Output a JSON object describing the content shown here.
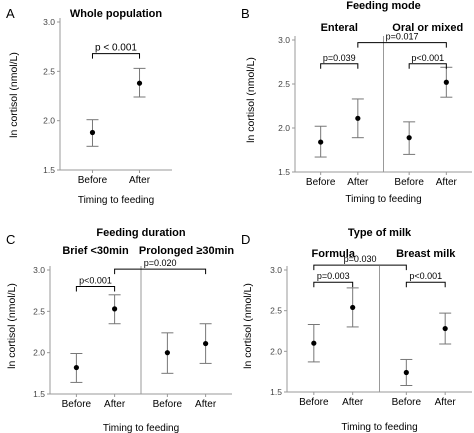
{
  "chart_data": [
    {
      "panel": "A",
      "type": "scatter",
      "title": "Whole population",
      "ylabel": "ln cortisol (nmol/L)",
      "xlabel": "Timing to feeding",
      "ylim": [
        1.5,
        3.0
      ],
      "yticks": [
        "1.5",
        "2.0",
        "2.5",
        "3.0"
      ],
      "grid": false,
      "groups": [
        {
          "name": "",
          "categories": [
            "Before",
            "After"
          ],
          "values": [
            1.88,
            2.38
          ],
          "lower": [
            1.74,
            2.24
          ],
          "upper": [
            2.01,
            2.53
          ]
        }
      ],
      "annotations": [
        {
          "text": "p < 0.001",
          "from": [
            0,
            0
          ],
          "to": [
            0,
            1
          ],
          "y": 2.68
        }
      ]
    },
    {
      "panel": "B",
      "type": "scatter",
      "title": "Feeding mode",
      "ylabel": "ln cortisol (nmol/L)",
      "xlabel": "Timing to feeding",
      "ylim": [
        1.5,
        3.0
      ],
      "yticks": [
        "1.5",
        "2.0",
        "2.5",
        "3.0"
      ],
      "grid": false,
      "groups": [
        {
          "name": "Enteral",
          "categories": [
            "Before",
            "After"
          ],
          "values": [
            1.84,
            2.11
          ],
          "lower": [
            1.67,
            1.89
          ],
          "upper": [
            2.02,
            2.33
          ]
        },
        {
          "name": "Oral or mixed",
          "categories": [
            "Before",
            "After"
          ],
          "values": [
            1.89,
            2.52
          ],
          "lower": [
            1.7,
            2.35
          ],
          "upper": [
            2.07,
            2.69
          ]
        }
      ],
      "annotations": [
        {
          "text": "p=0.039",
          "from": [
            0,
            0
          ],
          "to": [
            0,
            1
          ],
          "y": 2.73
        },
        {
          "text": "p<0.001",
          "from": [
            1,
            0
          ],
          "to": [
            1,
            1
          ],
          "y": 2.73
        },
        {
          "text": "p=0.017",
          "from": [
            0,
            1
          ],
          "to": [
            1,
            1
          ],
          "y": 2.97
        }
      ]
    },
    {
      "panel": "C",
      "type": "scatter",
      "title": "Feeding duration",
      "ylabel": "ln cortisol (nmol/L)",
      "xlabel": "Timing to feeding",
      "ylim": [
        1.5,
        3.0
      ],
      "yticks": [
        "1.5",
        "2.0",
        "2.5",
        "3.0"
      ],
      "grid": false,
      "groups": [
        {
          "name": "Brief <30min",
          "categories": [
            "Before",
            "After"
          ],
          "values": [
            1.82,
            2.53
          ],
          "lower": [
            1.64,
            2.35
          ],
          "upper": [
            1.99,
            2.7
          ]
        },
        {
          "name": "Prolonged ≥30min",
          "categories": [
            "Before",
            "After"
          ],
          "values": [
            2.0,
            2.11
          ],
          "lower": [
            1.75,
            1.87
          ],
          "upper": [
            2.24,
            2.35
          ]
        }
      ],
      "annotations": [
        {
          "text": "p<0.001",
          "from": [
            0,
            0
          ],
          "to": [
            0,
            1
          ],
          "y": 2.8
        },
        {
          "text": "p=0.020",
          "from": [
            0,
            1
          ],
          "to": [
            1,
            1
          ],
          "y": 3.01
        }
      ]
    },
    {
      "panel": "D",
      "type": "scatter",
      "title": "Type of milk",
      "ylabel": "ln cortisol (nmol/L)",
      "xlabel": "Timing to feeding",
      "ylim": [
        1.5,
        3.0
      ],
      "yticks": [
        "1.5",
        "2.0",
        "2.5",
        "3.0"
      ],
      "grid": false,
      "groups": [
        {
          "name": "Formula",
          "categories": [
            "Before",
            "After"
          ],
          "values": [
            2.1,
            2.54
          ],
          "lower": [
            1.87,
            2.3
          ],
          "upper": [
            2.33,
            2.78
          ]
        },
        {
          "name": "Breast milk",
          "categories": [
            "Before",
            "After"
          ],
          "values": [
            1.74,
            2.28
          ],
          "lower": [
            1.58,
            2.09
          ],
          "upper": [
            1.9,
            2.47
          ]
        }
      ],
      "annotations": [
        {
          "text": "p=0.003",
          "from": [
            0,
            0
          ],
          "to": [
            0,
            1
          ],
          "y": 2.85
        },
        {
          "text": "p<0.001",
          "from": [
            1,
            0
          ],
          "to": [
            1,
            1
          ],
          "y": 2.85
        },
        {
          "text": "p=0.030",
          "from": [
            0,
            0
          ],
          "to": [
            1,
            0
          ],
          "y": 3.06
        }
      ]
    }
  ]
}
